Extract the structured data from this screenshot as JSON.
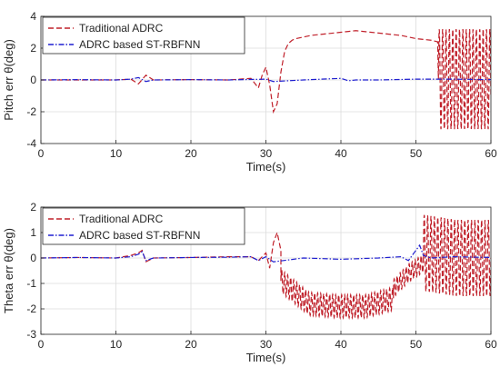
{
  "chart_data": [
    {
      "type": "line",
      "xlabel": "Time(s)",
      "ylabel": "Pitch err θ(deg)",
      "xlim": [
        0,
        60
      ],
      "ylim": [
        -4,
        4
      ],
      "xticks": [
        "0",
        "10",
        "20",
        "30",
        "40",
        "50",
        "60"
      ],
      "yticks": [
        "-4",
        "-2",
        "0",
        "2",
        "4"
      ],
      "grid": true,
      "legend_position": "top-left",
      "series": [
        {
          "name": "Traditional ADRC",
          "color": "#c0202a",
          "dash": "dashed",
          "x": [
            0,
            5,
            10,
            12,
            13,
            14,
            15,
            20,
            25,
            28,
            29,
            29.5,
            30,
            30.5,
            31,
            31.5,
            32,
            32.5,
            33,
            33.5,
            34,
            35,
            36,
            38,
            40,
            42,
            44,
            46,
            48,
            50,
            52,
            52.9
          ],
          "y": [
            0,
            0,
            0,
            0.05,
            -0.25,
            0.3,
            0,
            0.02,
            0,
            0.1,
            -0.5,
            0.3,
            0.8,
            -0.3,
            -2.0,
            -1.5,
            0.5,
            1.8,
            2.3,
            2.5,
            2.6,
            2.7,
            2.8,
            2.9,
            3.0,
            3.1,
            3.0,
            2.9,
            2.8,
            2.6,
            2.5,
            2.4
          ],
          "oscillation": {
            "x_start": 53,
            "x_end": 60,
            "high": 3.2,
            "low": -3.1,
            "period": 0.45
          }
        },
        {
          "name": "ADRC based ST-RBFNN",
          "color": "#1f1fd0",
          "dash": "dash-dot",
          "x": [
            0,
            5,
            10,
            12,
            13,
            14,
            15,
            20,
            25,
            30,
            31,
            35,
            40,
            41,
            42,
            45,
            50,
            53,
            55,
            60
          ],
          "y": [
            0,
            0.02,
            0,
            0.05,
            0.15,
            -0.1,
            0,
            0.02,
            0,
            0.05,
            -0.1,
            0,
            0.1,
            -0.05,
            0,
            0,
            0.05,
            0.05,
            0.05,
            0.02
          ]
        }
      ]
    },
    {
      "type": "line",
      "xlabel": "Time(s)",
      "ylabel": "Theta err θ(deg)",
      "xlim": [
        0,
        60
      ],
      "ylim": [
        -3,
        2
      ],
      "xticks": [
        "0",
        "10",
        "20",
        "30",
        "40",
        "50",
        "60"
      ],
      "yticks": [
        "-3",
        "-2",
        "-1",
        "0",
        "1",
        "2"
      ],
      "grid": true,
      "legend_position": "top-left",
      "series": [
        {
          "name": "Traditional ADRC",
          "color": "#c0202a",
          "dash": "dashed",
          "x": [
            0,
            5,
            10,
            12,
            13,
            13.5,
            14,
            15,
            20,
            25,
            28,
            29,
            30,
            30.5,
            31,
            31.5,
            32
          ],
          "y": [
            0,
            0.02,
            0,
            0.1,
            0.2,
            0.3,
            -0.15,
            0,
            0.02,
            0.05,
            0.05,
            -0.1,
            0.2,
            -0.4,
            0.6,
            1.0,
            0.3
          ],
          "oscillation_segments": [
            {
              "x_start": 32,
              "x_end": 47,
              "center": [
                -0.9,
                -1.8,
                -1.9,
                -1.9,
                -1.6
              ],
              "amplitude": 0.45,
              "period": 0.4
            },
            {
              "x_start": 47,
              "x_end": 51,
              "center": [
                -1.2,
                -0.6,
                -0.2
              ],
              "amplitude": 0.35,
              "period": 0.4
            },
            {
              "x_start": 51,
              "x_end": 60,
              "center": [
                0.2,
                0.0,
                0.0
              ],
              "amplitude": 1.5,
              "period": 0.45
            }
          ]
        },
        {
          "name": "ADRC based ST-RBFNN",
          "color": "#1f1fd0",
          "dash": "dash-dot",
          "x": [
            0,
            5,
            10,
            12,
            13,
            13.5,
            14,
            15,
            20,
            25,
            28,
            29,
            30,
            31,
            35,
            40,
            45,
            48,
            49,
            50,
            50.5,
            51,
            52,
            55,
            60
          ],
          "y": [
            0,
            0.02,
            0,
            0.05,
            0.15,
            0.25,
            -0.1,
            0,
            0.02,
            0.03,
            0.05,
            -0.1,
            0.05,
            -0.15,
            0,
            -0.05,
            0,
            0.05,
            -0.1,
            0.3,
            0.5,
            0.1,
            0,
            0.05,
            0.02
          ]
        }
      ]
    }
  ]
}
